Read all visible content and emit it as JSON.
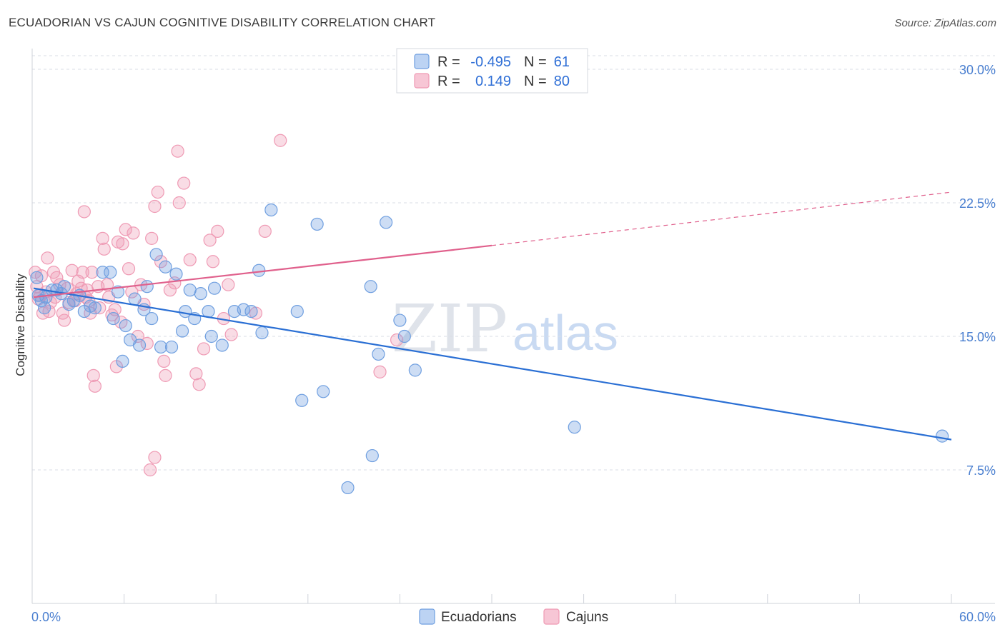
{
  "title": "ECUADORIAN VS CAJUN COGNITIVE DISABILITY CORRELATION CHART",
  "source": "Source: ZipAtlas.com",
  "watermark": {
    "zip": "ZIP",
    "atlas": "atlas"
  },
  "legend": {
    "row1": {
      "r_label": "R = ",
      "r_value": "-0.495",
      "n_label": "N = ",
      "n_value": "61"
    },
    "row2": {
      "r_label": "R = ",
      "r_value": "0.149",
      "n_label": "N = ",
      "n_value": "80"
    }
  },
  "colors": {
    "ecuadorians": "#6f9fe0",
    "ecuadorians_line": "#2a6fd4",
    "cajuns": "#ef9ab4",
    "cajuns_line": "#e0608c",
    "grid": "#d9dde5",
    "tick_text": "#4a7fd0"
  },
  "chart_data": {
    "type": "scatter",
    "title": "ECUADORIAN VS CAJUN COGNITIVE DISABILITY CORRELATION CHART",
    "xlabel": "",
    "ylabel": "Cognitive Disability",
    "xlim": [
      0,
      60
    ],
    "ylim": [
      0,
      30.5
    ],
    "x_tick_labels": [
      "0.0%",
      "60.0%"
    ],
    "y_ticks": [
      7.5,
      15.0,
      22.5,
      30.0
    ],
    "y_tick_labels": [
      "7.5%",
      "15.0%",
      "22.5%",
      "30.0%"
    ],
    "grid": true,
    "legend_position": "bottom-center",
    "series": [
      {
        "name": "Ecuadorians",
        "r": -0.495,
        "n": 61,
        "trend": {
          "x0": 0.1,
          "y0": 17.7,
          "x1": 60.0,
          "y1": 9.2
        },
        "points": [
          [
            0.3,
            18.3
          ],
          [
            0.4,
            17.3
          ],
          [
            0.6,
            17.0
          ],
          [
            0.8,
            16.6
          ],
          [
            0.9,
            17.2
          ],
          [
            1.3,
            17.6
          ],
          [
            1.6,
            17.6
          ],
          [
            1.9,
            17.4
          ],
          [
            2.1,
            17.8
          ],
          [
            2.4,
            16.8
          ],
          [
            2.7,
            17.0
          ],
          [
            3.1,
            17.3
          ],
          [
            3.4,
            16.4
          ],
          [
            3.8,
            16.7
          ],
          [
            4.1,
            16.6
          ],
          [
            4.6,
            18.6
          ],
          [
            5.1,
            18.6
          ],
          [
            5.3,
            16.0
          ],
          [
            5.6,
            17.5
          ],
          [
            5.9,
            13.6
          ],
          [
            6.1,
            15.6
          ],
          [
            6.4,
            14.8
          ],
          [
            6.7,
            17.1
          ],
          [
            7.0,
            14.5
          ],
          [
            7.3,
            16.5
          ],
          [
            7.5,
            17.8
          ],
          [
            7.8,
            16.0
          ],
          [
            8.1,
            19.6
          ],
          [
            8.4,
            14.4
          ],
          [
            8.7,
            18.9
          ],
          [
            9.1,
            14.4
          ],
          [
            9.4,
            18.5
          ],
          [
            9.8,
            15.3
          ],
          [
            10.0,
            16.4
          ],
          [
            10.3,
            17.6
          ],
          [
            10.6,
            16.0
          ],
          [
            11.0,
            17.4
          ],
          [
            11.5,
            16.4
          ],
          [
            11.7,
            15.0
          ],
          [
            11.9,
            17.7
          ],
          [
            12.4,
            14.5
          ],
          [
            13.2,
            16.4
          ],
          [
            13.8,
            16.5
          ],
          [
            14.3,
            16.4
          ],
          [
            14.8,
            18.7
          ],
          [
            15.0,
            15.2
          ],
          [
            15.6,
            22.1
          ],
          [
            17.3,
            16.4
          ],
          [
            17.6,
            11.4
          ],
          [
            18.6,
            21.3
          ],
          [
            19.0,
            11.9
          ],
          [
            20.6,
            6.5
          ],
          [
            22.1,
            17.8
          ],
          [
            22.2,
            8.3
          ],
          [
            22.6,
            14.0
          ],
          [
            23.1,
            21.4
          ],
          [
            24.0,
            15.9
          ],
          [
            24.3,
            15.0
          ],
          [
            25.0,
            13.1
          ],
          [
            35.4,
            9.9
          ],
          [
            59.4,
            9.4
          ]
        ]
      },
      {
        "name": "Cajuns",
        "r": 0.149,
        "n": 80,
        "trend_solid": {
          "x0": 0.1,
          "y0": 17.2,
          "x1": 30.0,
          "y1": 20.1
        },
        "trend_dashed": {
          "x0": 30.0,
          "y0": 20.1,
          "x1": 60.0,
          "y1": 23.1
        },
        "points": [
          [
            0.2,
            18.6
          ],
          [
            0.3,
            17.8
          ],
          [
            0.4,
            17.1
          ],
          [
            0.6,
            18.4
          ],
          [
            0.7,
            16.3
          ],
          [
            0.9,
            17.5
          ],
          [
            1.0,
            19.4
          ],
          [
            1.2,
            16.9
          ],
          [
            1.4,
            18.6
          ],
          [
            1.5,
            17.2
          ],
          [
            1.6,
            18.3
          ],
          [
            1.8,
            17.9
          ],
          [
            2.0,
            16.3
          ],
          [
            2.1,
            15.9
          ],
          [
            2.3,
            17.7
          ],
          [
            2.4,
            16.9
          ],
          [
            2.6,
            18.7
          ],
          [
            2.8,
            17.0
          ],
          [
            3.0,
            18.1
          ],
          [
            3.2,
            17.7
          ],
          [
            3.3,
            18.6
          ],
          [
            3.4,
            22.0
          ],
          [
            3.5,
            17.2
          ],
          [
            3.6,
            17.6
          ],
          [
            3.8,
            16.3
          ],
          [
            3.9,
            18.6
          ],
          [
            4.0,
            12.8
          ],
          [
            4.1,
            12.2
          ],
          [
            4.3,
            17.8
          ],
          [
            4.4,
            16.6
          ],
          [
            4.6,
            20.5
          ],
          [
            4.7,
            19.9
          ],
          [
            4.9,
            17.9
          ],
          [
            5.0,
            17.2
          ],
          [
            5.2,
            16.2
          ],
          [
            5.4,
            16.5
          ],
          [
            5.5,
            13.3
          ],
          [
            5.6,
            20.3
          ],
          [
            5.8,
            15.8
          ],
          [
            5.9,
            20.2
          ],
          [
            6.1,
            21.0
          ],
          [
            6.3,
            18.8
          ],
          [
            6.5,
            17.5
          ],
          [
            6.6,
            20.8
          ],
          [
            6.9,
            15.0
          ],
          [
            7.1,
            17.9
          ],
          [
            7.3,
            16.8
          ],
          [
            7.5,
            14.6
          ],
          [
            7.7,
            7.5
          ],
          [
            7.8,
            20.5
          ],
          [
            8.0,
            8.2
          ],
          [
            8.0,
            22.3
          ],
          [
            8.2,
            23.1
          ],
          [
            8.4,
            19.2
          ],
          [
            8.6,
            13.6
          ],
          [
            8.7,
            12.8
          ],
          [
            9.0,
            17.6
          ],
          [
            9.3,
            18.0
          ],
          [
            9.5,
            25.4
          ],
          [
            9.6,
            22.5
          ],
          [
            9.9,
            23.6
          ],
          [
            10.3,
            19.3
          ],
          [
            10.7,
            12.9
          ],
          [
            10.9,
            12.3
          ],
          [
            11.2,
            14.3
          ],
          [
            11.6,
            20.4
          ],
          [
            11.8,
            19.2
          ],
          [
            12.1,
            20.9
          ],
          [
            12.5,
            16.0
          ],
          [
            12.8,
            17.9
          ],
          [
            13.0,
            15.1
          ],
          [
            14.6,
            16.3
          ],
          [
            15.2,
            20.9
          ],
          [
            16.2,
            26.0
          ],
          [
            22.7,
            13.0
          ],
          [
            23.8,
            14.8
          ],
          [
            0.5,
            17.3
          ],
          [
            1.1,
            16.4
          ],
          [
            2.9,
            17.4
          ],
          [
            3.7,
            17.0
          ]
        ]
      }
    ]
  },
  "bottom_legend": {
    "item1": "Ecuadorians",
    "item2": "Cajuns"
  }
}
